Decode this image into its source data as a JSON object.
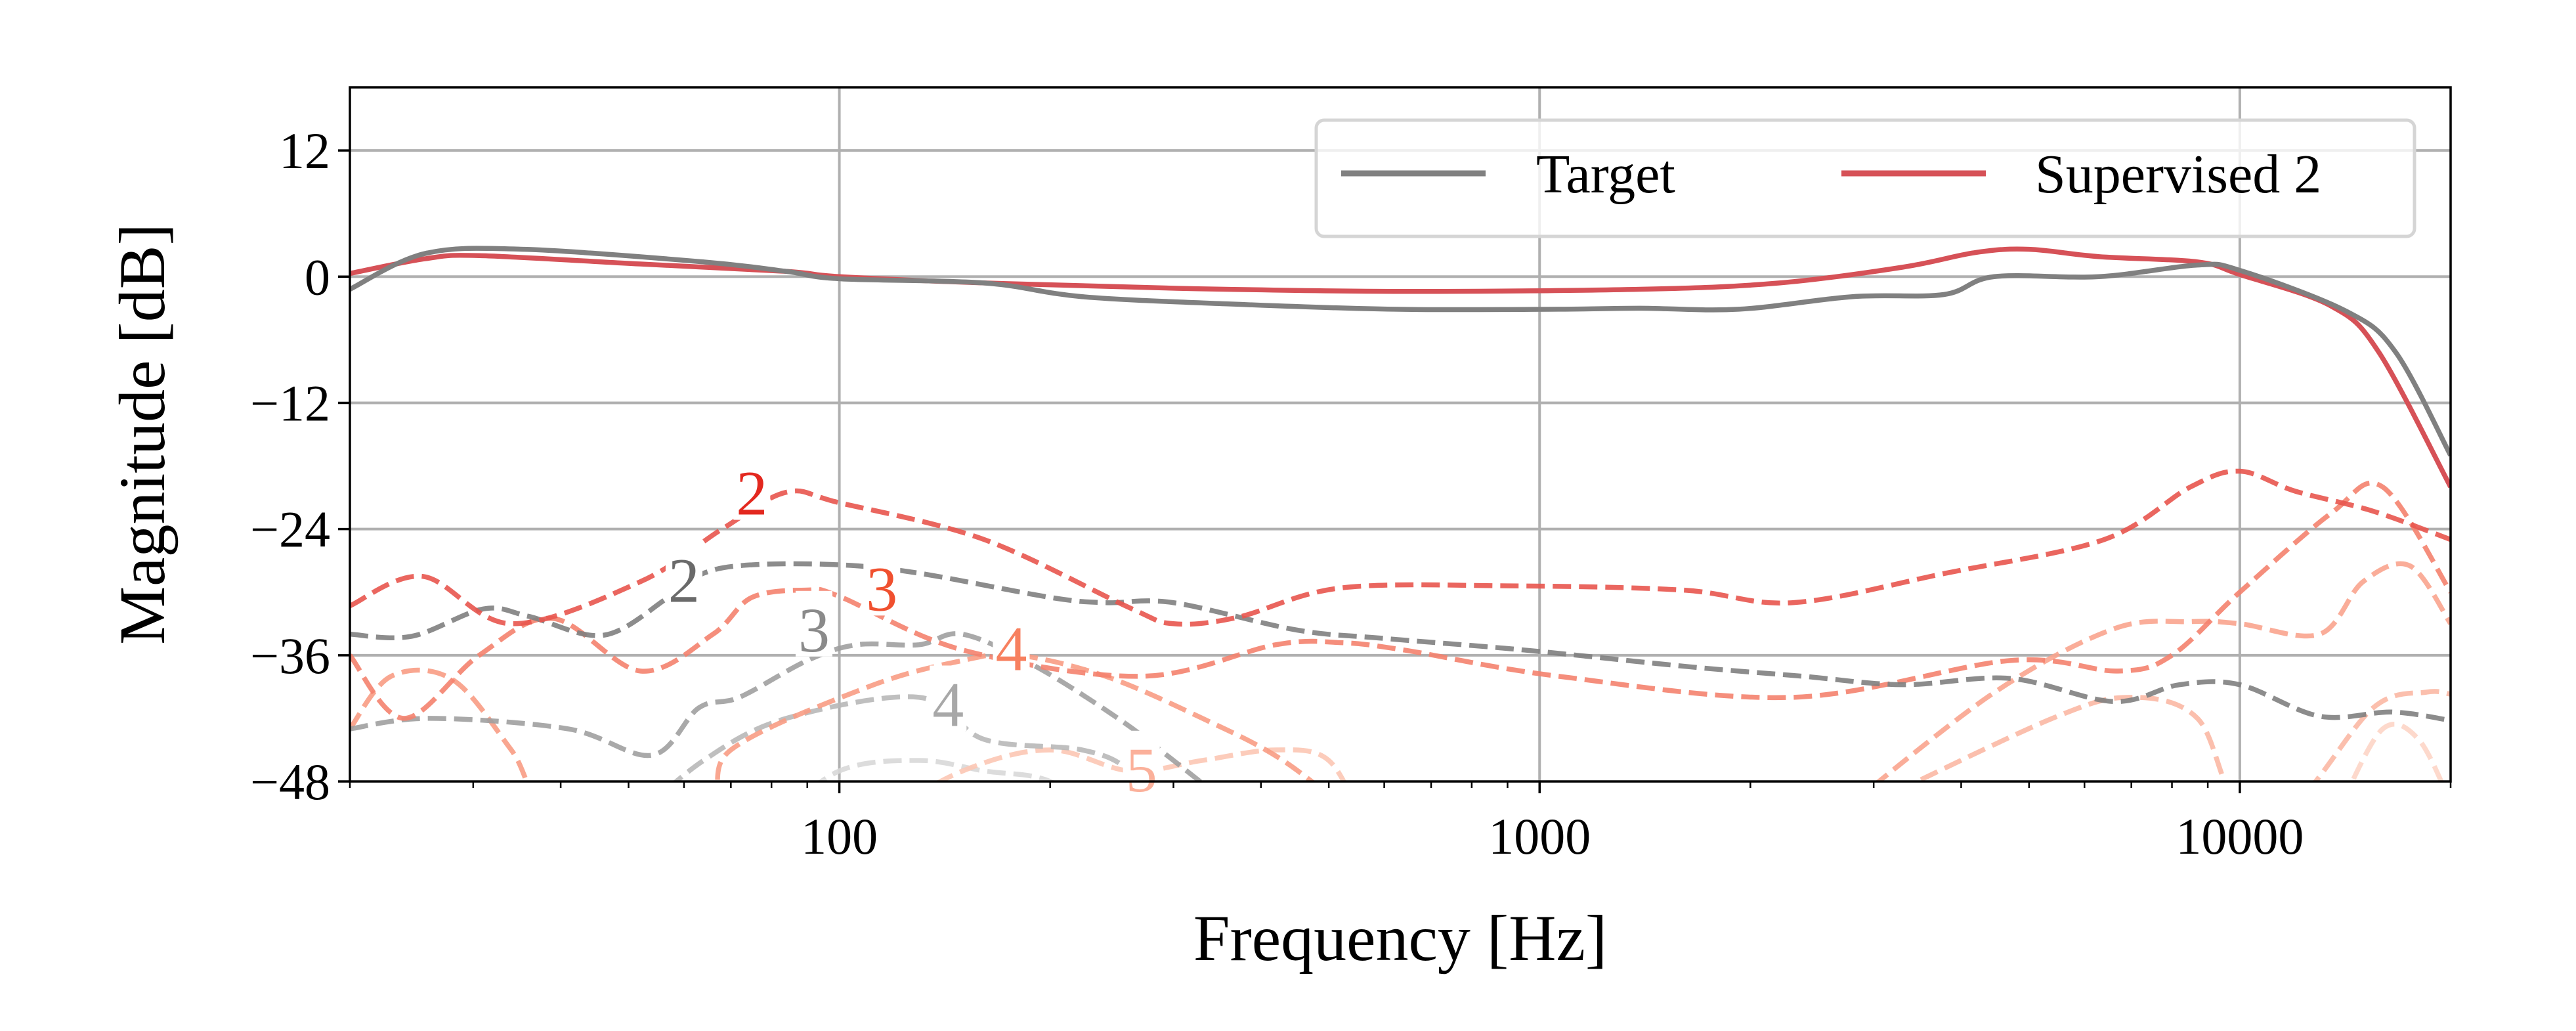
{
  "chart_data": {
    "type": "line",
    "title": "",
    "xlabel": "Frequency [Hz]",
    "ylabel": "Magnitude [dB]",
    "xscale": "log",
    "xlim": [
      20,
      20000
    ],
    "ylim": [
      -48,
      18
    ],
    "xticks": [
      100,
      1000,
      10000
    ],
    "xtick_labels": [
      "100",
      "1000",
      "10000"
    ],
    "yticks": [
      12,
      0,
      -12,
      -24,
      -36,
      -48
    ],
    "ytick_labels": [
      "12",
      "0",
      "−12",
      "−24",
      "−36",
      "−48"
    ],
    "grid": true,
    "legend": {
      "placement": "top-right",
      "entries": [
        "Target",
        "Supervised 2"
      ]
    },
    "series": [
      {
        "name": "Target",
        "color": "#808080",
        "style": "solid",
        "in_legend": true,
        "x": [
          20,
          25.6,
          35.5,
          64,
          84,
          100,
          161,
          222,
          361,
          620,
          1065,
          1391,
          1925,
          2800,
          3780,
          4460,
          6300,
          8700,
          10000,
          14200,
          16700,
          20000
        ],
        "y": [
          -1.2,
          2.2,
          2.6,
          1.4,
          0.5,
          -0.2,
          -0.6,
          -1.9,
          -2.6,
          -3.1,
          -3.1,
          -3.0,
          -3.1,
          -1.9,
          -1.7,
          0,
          0,
          1.1,
          0.6,
          -3.3,
          -7.2,
          -17
        ]
      },
      {
        "name": "Supervised 2",
        "color": "#d65157",
        "style": "solid",
        "in_legend": true,
        "x": [
          20,
          25.6,
          30.6,
          52,
          84,
          100,
          161,
          300,
          620,
          1391,
          2200,
          3300,
          4200,
          5000,
          6300,
          8700,
          10000,
          13500,
          15800,
          20000
        ],
        "y": [
          0.3,
          1.7,
          2.0,
          1.2,
          0.5,
          0,
          -0.6,
          -1.1,
          -1.4,
          -1.2,
          -0.6,
          0.9,
          2.3,
          2.6,
          1.9,
          1.4,
          0.2,
          -2.8,
          -7.2,
          -20
        ]
      },
      {
        "name": "Supervised 2 harmonic 2",
        "color": "#e8554e",
        "style": "dashed",
        "in_legend": false,
        "x": [
          20,
          25.4,
          34,
          52,
          68,
          84,
          100,
          161,
          260,
          300,
          370,
          520,
          900,
          1600,
          2300,
          3800,
          6400,
          8500,
          10000,
          12000,
          15500,
          20000
        ],
        "y": [
          -31.3,
          -28.5,
          -33,
          -29,
          -24,
          -20.5,
          -21.5,
          -25,
          -31.5,
          -33,
          -32.4,
          -29.6,
          -29.4,
          -29.8,
          -31,
          -28.2,
          -25,
          -20,
          -18.5,
          -20.4,
          -22.3,
          -25
        ]
      },
      {
        "name": "Target harmonic 2",
        "color": "#7f7f7f",
        "style": "dashed",
        "in_legend": false,
        "x": [
          20,
          24.5,
          31,
          36,
          46,
          57,
          64,
          75,
          100,
          130,
          200,
          240,
          300,
          450,
          600,
          950,
          1640,
          2380,
          3300,
          4700,
          6600,
          8200,
          10000,
          13000,
          16500,
          20000
        ],
        "y": [
          -34,
          -34.2,
          -31.6,
          -32.3,
          -34.1,
          -30.5,
          -28.2,
          -27.4,
          -27.4,
          -28.2,
          -30.5,
          -31,
          -31,
          -33.6,
          -34.4,
          -35.5,
          -37.1,
          -38,
          -38.8,
          -38.2,
          -40.4,
          -38.8,
          -38.8,
          -41.8,
          -41.4,
          -42.2
        ]
      },
      {
        "name": "Supervised 2 harmonic 3",
        "color": "#f4826e",
        "style": "dashed",
        "in_legend": false,
        "x": [
          20,
          23.9,
          30.6,
          39,
          52,
          66,
          75,
          90,
          100,
          150,
          270,
          420,
          520,
          640,
          1065,
          2300,
          4700,
          6700,
          8000,
          10000,
          13500,
          16000,
          20000
        ],
        "y": [
          -36,
          -42,
          -36,
          -32.5,
          -37.5,
          -34,
          -30.5,
          -29.8,
          -30.4,
          -35.5,
          -38,
          -35,
          -34.8,
          -35.5,
          -38,
          -40,
          -36.5,
          -37.5,
          -36,
          -30,
          -22.5,
          -20,
          -30
        ]
      },
      {
        "name": "Target harmonic 3",
        "color": "#a0a0a0",
        "style": "dashed",
        "in_legend": false,
        "x": [
          20,
          26,
          41,
          54,
          63,
          72,
          90,
          106,
          130,
          150,
          190,
          250,
          300,
          390,
          450
        ],
        "y": [
          -43,
          -42,
          -43,
          -45.5,
          -41,
          -40,
          -36.5,
          -35,
          -35,
          -34,
          -37,
          -42,
          -46,
          -52,
          -55
        ]
      },
      {
        "name": "Supervised 2 harmonic 4",
        "color": "#f89c84",
        "style": "dashed",
        "in_legend": false,
        "x": [
          20,
          22.9,
          28,
          34,
          40,
          64,
          70,
          110,
          150,
          180,
          240,
          330,
          430,
          560
        ],
        "y": [
          -43,
          -38,
          -38.3,
          -45,
          -52,
          -51,
          -45,
          -39,
          -36.5,
          -36,
          -38,
          -42,
          -46,
          -52
        ]
      },
      {
        "name": "Target harmonic 4",
        "color": "#b8b8b8",
        "style": "dashed",
        "in_legend": false,
        "x": [
          50,
          64,
          84,
          130,
          161,
          222,
          260,
          300
        ],
        "y": [
          -52,
          -46,
          -42,
          -40,
          -44,
          -45,
          -47,
          -52
        ]
      },
      {
        "name": "Supervised 2 harmonic 4 (high)",
        "color": "#f9a48e",
        "style": "dashed",
        "in_legend": false,
        "x": [
          2800,
          4470,
          6600,
          8500,
          10000,
          13000,
          15000,
          17500,
          20000
        ],
        "y": [
          -50,
          -39.5,
          -33.5,
          -32.8,
          -33,
          -34,
          -29,
          -27.5,
          -33
        ]
      },
      {
        "name": "Supervised 2 harmonic 5",
        "color": "#fbb8a4",
        "style": "dashed",
        "in_legend": false,
        "x": [
          3000,
          5400,
          7000,
          8700,
          9900,
          12000,
          15500,
          18500,
          20000
        ],
        "y": [
          -50,
          -42,
          -40,
          -42,
          -50,
          -50,
          -41,
          -39.5,
          -39.7
        ]
      },
      {
        "name": "Supervised 2 harmonic 5 (low)",
        "color": "#fcc6b4",
        "style": "dashed",
        "in_legend": false,
        "x": [
          110,
          150,
          200,
          260,
          330,
          420,
          500,
          560
        ],
        "y": [
          -52,
          -47,
          -45,
          -47,
          -46,
          -45,
          -46,
          -52
        ]
      },
      {
        "name": "Target harmonic 5",
        "color": "#d8d8d8",
        "style": "dashed",
        "in_legend": false,
        "x": [
          80,
          100,
          130,
          161,
          200,
          240
        ],
        "y": [
          -52,
          -47,
          -46,
          -47,
          -48,
          -52
        ]
      },
      {
        "name": "Supervised 2 harmonic 6",
        "color": "#fdd5c6",
        "style": "dashed",
        "in_legend": false,
        "x": [
          14000,
          16000,
          18000,
          20000
        ],
        "y": [
          -50,
          -43,
          -44,
          -50
        ]
      }
    ],
    "annotations": [
      {
        "text": "2",
        "x": 75,
        "y": -20.5,
        "color": "#e3281f"
      },
      {
        "text": "2",
        "x": 60,
        "y": -28.8,
        "color": "#6a6a6a"
      },
      {
        "text": "3",
        "x": 115,
        "y": -29.6,
        "color": "#f0502f"
      },
      {
        "text": "3",
        "x": 92,
        "y": -33.5,
        "color": "#8a8a8a"
      },
      {
        "text": "4",
        "x": 176,
        "y": -35.3,
        "color": "#f7805f"
      },
      {
        "text": "4",
        "x": 143,
        "y": -40.6,
        "color": "#a8a8a8"
      },
      {
        "text": "5",
        "x": 270,
        "y": -46.8,
        "color": "#fbb09a"
      }
    ]
  }
}
